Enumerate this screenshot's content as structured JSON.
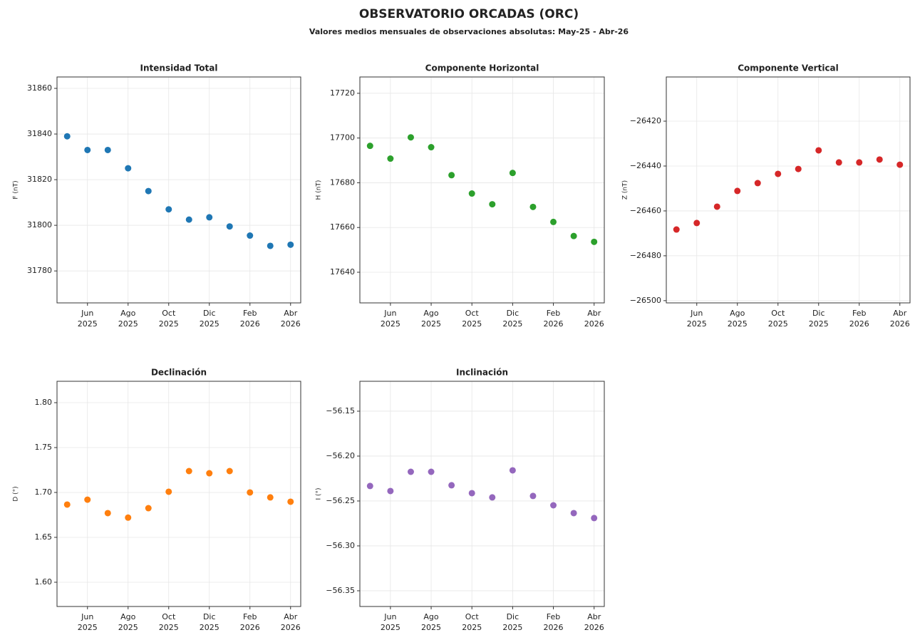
{
  "header": {
    "title": "OBSERVATORIO ORCADAS (ORC)",
    "subtitle": "Valores medios mensuales de observaciones absolutas: May-25 - Abr-26"
  },
  "chart_data": [
    {
      "type": "scatter",
      "title": "Intensidad Total",
      "ylabel": "F (nT)",
      "color": "#1f77b4",
      "grid": true,
      "categories": [
        null,
        "Jun 2025",
        null,
        "Ago 2025",
        null,
        "Oct 2025",
        null,
        "Dic 2025",
        null,
        "Feb 2026",
        null,
        "Abr 2026"
      ],
      "values": [
        31839,
        31833,
        31833,
        31825,
        31815,
        31807,
        31802.5,
        31803.5,
        31799.5,
        31795.5,
        31791,
        31791.5
      ],
      "ylim": [
        31766,
        31865
      ],
      "yticks": [
        31780,
        31800,
        31820,
        31840,
        31860
      ]
    },
    {
      "type": "scatter",
      "title": "Componente Horizontal",
      "ylabel": "H (nT)",
      "color": "#2ca02c",
      "grid": true,
      "categories": [
        null,
        "Jun 2025",
        null,
        "Ago 2025",
        null,
        "Oct 2025",
        null,
        "Dic 2025",
        null,
        "Feb 2026",
        null,
        "Abr 2026"
      ],
      "values": [
        17696.5,
        17690.8,
        17700.3,
        17695.9,
        17683.4,
        17675.2,
        17670.4,
        17684.4,
        17669.2,
        17662.5,
        17656.2,
        17653.6
      ],
      "ylim": [
        17626.3,
        17727.3
      ],
      "yticks": [
        17640,
        17660,
        17680,
        17700,
        17720
      ]
    },
    {
      "type": "scatter",
      "title": "Componente Vertical",
      "ylabel": "Z (nT)",
      "color": "#d62728",
      "grid": true,
      "categories": [
        null,
        "Jun 2025",
        null,
        "Ago 2025",
        null,
        "Oct 2025",
        null,
        "Dic 2025",
        null,
        "Feb 2026",
        null,
        "Abr 2026"
      ],
      "values": [
        -26468.3,
        -26465.4,
        -26458.1,
        -26451.1,
        -26447.6,
        -26443.5,
        -26441.3,
        -26433,
        -26438.4,
        -26438.4,
        -26437.1,
        -26439.4
      ],
      "ylim": [
        -26501,
        -26400.3
      ],
      "yticks": [
        {
          "value": -26500,
          "label": "−26500"
        },
        {
          "value": -26480,
          "label": "−26480"
        },
        {
          "value": -26460,
          "label": "−26460"
        },
        {
          "value": -26440,
          "label": "−26440"
        },
        {
          "value": -26420,
          "label": "−26420"
        }
      ]
    },
    {
      "type": "scatter",
      "title": "Declinación",
      "ylabel": "D (°)",
      "color": "#ff7f0e",
      "grid": true,
      "categories": [
        null,
        "Jun 2025",
        null,
        "Ago 2025",
        null,
        "Oct 2025",
        null,
        "Dic 2025",
        null,
        "Feb 2026",
        null,
        "Abr 2026"
      ],
      "values": [
        1.6865,
        1.692,
        1.677,
        1.672,
        1.6825,
        1.7008,
        1.7238,
        1.7214,
        1.7238,
        1.7,
        1.6945,
        1.6897
      ],
      "ylim": [
        1.573,
        1.8238
      ],
      "yticks": [
        {
          "value": 1.6,
          "label": "1.60"
        },
        1.65,
        {
          "value": 1.7,
          "label": "1.70"
        },
        1.75,
        {
          "value": 1.8,
          "label": "1.80"
        }
      ]
    },
    {
      "type": "scatter",
      "title": "Inclinación",
      "ylabel": "I (°)",
      "color": "#9467bd",
      "grid": true,
      "categories": [
        null,
        "Jun 2025",
        null,
        "Ago 2025",
        null,
        "Oct 2025",
        null,
        "Dic 2025",
        null,
        "Feb 2026",
        null,
        "Abr 2026"
      ],
      "values": [
        -56.2333,
        -56.2389,
        -56.2175,
        -56.2175,
        -56.2325,
        -56.2413,
        -56.246,
        -56.2159,
        -56.2444,
        -56.2548,
        -56.2635,
        -56.269
      ],
      "ylim": [
        -56.3675,
        -56.1167
      ],
      "yticks": [
        {
          "value": -56.35,
          "label": "−56.35"
        },
        {
          "value": -56.3,
          "label": "−56.30"
        },
        {
          "value": -56.25,
          "label": "−56.25"
        },
        {
          "value": -56.2,
          "label": "−56.20"
        },
        {
          "value": -56.15,
          "label": "−56.15"
        }
      ]
    }
  ]
}
